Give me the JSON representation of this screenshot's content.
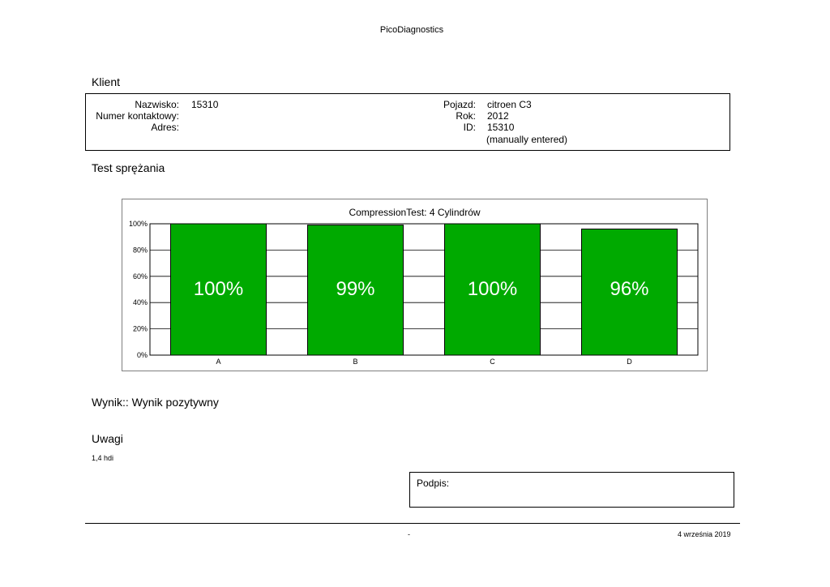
{
  "header": {
    "app_title": "PicoDiagnostics"
  },
  "client": {
    "section_title": "Klient",
    "fields_left": [
      {
        "label": "Nazwisko:",
        "value": "15310"
      },
      {
        "label": "Numer kontaktowy:",
        "value": ""
      },
      {
        "label": "Adres:",
        "value": ""
      }
    ],
    "fields_right": [
      {
        "label": "Pojazd:",
        "value": "citroen C3"
      },
      {
        "label": "Rok:",
        "value": "2012"
      },
      {
        "label": "ID:",
        "value": "15310"
      }
    ],
    "id_note": "(manually entered)"
  },
  "test": {
    "section_title": "Test sprężania"
  },
  "chart_data": {
    "type": "bar",
    "title": "CompressionTest: 4 Cylindrów",
    "categories": [
      "A",
      "B",
      "C",
      "D"
    ],
    "values": [
      100,
      99,
      100,
      96
    ],
    "value_labels": [
      "100%",
      "99%",
      "100%",
      "96%"
    ],
    "ylim": [
      0,
      100
    ],
    "yticks": [
      0,
      20,
      40,
      60,
      80,
      100
    ],
    "ytick_labels": [
      "0%",
      "20%",
      "40%",
      "60%",
      "80%",
      "100%"
    ],
    "xlabel": "",
    "ylabel": "",
    "grid": true,
    "bar_color": "#00aa00",
    "value_label_color": "#ffffff"
  },
  "result": {
    "text": "Wynik:: Wynik pozytywny"
  },
  "remarks": {
    "section_title": "Uwagi",
    "text": "1,4 hdi"
  },
  "signature": {
    "label": "Podpis:"
  },
  "footer": {
    "center": "-",
    "date": "4 września 2019"
  }
}
